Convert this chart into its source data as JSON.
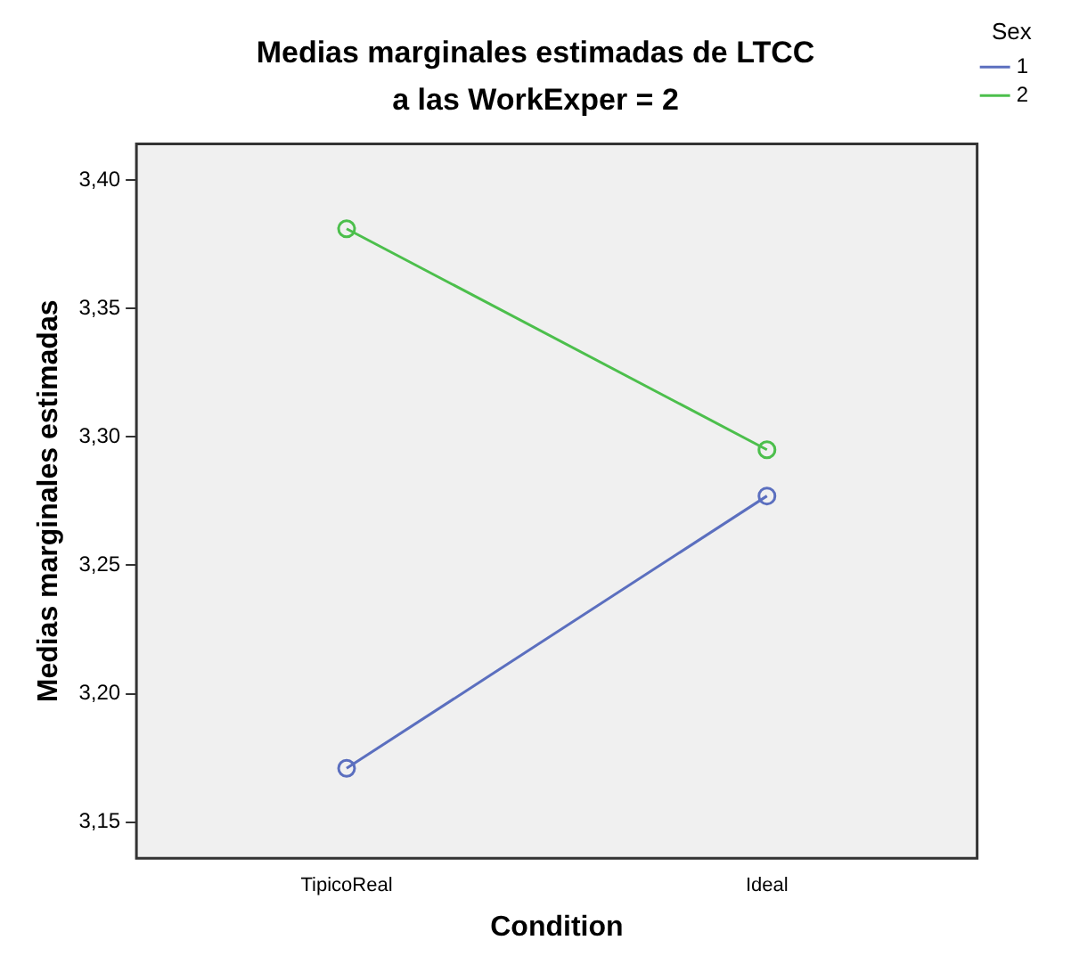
{
  "chart_data": {
    "type": "line",
    "title": "Medias marginales estimadas de LTCC",
    "subtitle": "a las WorkExper = 2",
    "xlabel": "Condition",
    "ylabel": "Medias marginales estimadas",
    "legend_title": "Sex",
    "legend": "top right",
    "marker": "circle",
    "grid": false,
    "categories": [
      "TipicoReal",
      "Ideal"
    ],
    "series": [
      {
        "name": "1",
        "color": "#5b6fbf",
        "values": [
          3.171,
          3.277
        ]
      },
      {
        "name": "2",
        "color": "#4cbf4c",
        "values": [
          3.381,
          3.295
        ]
      }
    ],
    "ylim": [
      3.136,
      3.414
    ],
    "yticks": [
      {
        "value": 3.15,
        "label": "3,15"
      },
      {
        "value": 3.2,
        "label": "3,20"
      },
      {
        "value": 3.25,
        "label": "3,25"
      },
      {
        "value": 3.3,
        "label": "3,30"
      },
      {
        "value": 3.35,
        "label": "3,35"
      },
      {
        "value": 3.4,
        "label": "3,40"
      }
    ]
  }
}
